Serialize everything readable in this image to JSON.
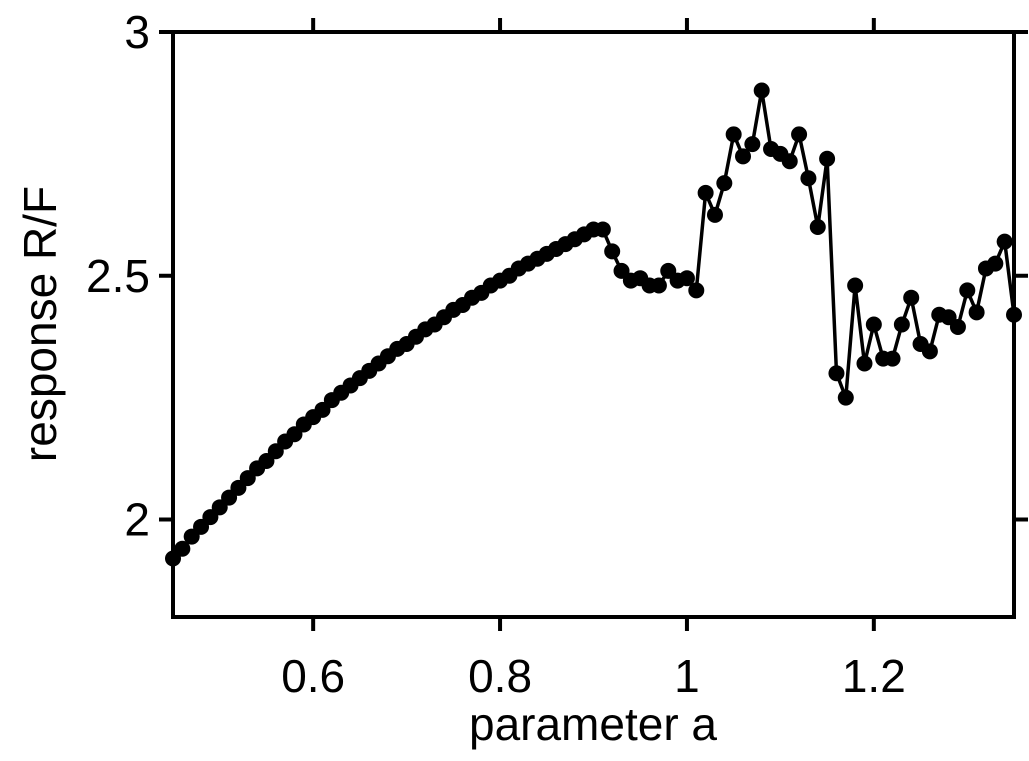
{
  "chart_data": {
    "type": "line",
    "xlabel": "parameter a",
    "ylabel": "response R/F",
    "xlim": [
      0.45,
      1.35
    ],
    "ylim": [
      1.8,
      3.0
    ],
    "x_ticks": [
      0.6,
      0.8,
      1.0,
      1.2
    ],
    "x_tick_labels": [
      "0.6",
      "0.8",
      "1",
      "1.2"
    ],
    "y_ticks": [
      2.0,
      2.5,
      3.0
    ],
    "y_tick_labels": [
      "2",
      "2.5",
      "3"
    ],
    "grid": false,
    "marker": "filled-circle",
    "color": "#000000",
    "series": [
      {
        "x": [
          0.45,
          0.46,
          0.47,
          0.48,
          0.49,
          0.5,
          0.51,
          0.52,
          0.53,
          0.54,
          0.55,
          0.56,
          0.57,
          0.58,
          0.59,
          0.6,
          0.61,
          0.62,
          0.63,
          0.64,
          0.65,
          0.66,
          0.67,
          0.68,
          0.69,
          0.7,
          0.71,
          0.72,
          0.73,
          0.74,
          0.75,
          0.76,
          0.77,
          0.78,
          0.79,
          0.8,
          0.81,
          0.82,
          0.83,
          0.84,
          0.85,
          0.86,
          0.87,
          0.88,
          0.89,
          0.9,
          0.91,
          0.92,
          0.93,
          0.94,
          0.95,
          0.96,
          0.97,
          0.98,
          0.99,
          1.0,
          1.01,
          1.02,
          1.03,
          1.04,
          1.05,
          1.06,
          1.07,
          1.08,
          1.09,
          1.1,
          1.11,
          1.12,
          1.13,
          1.14,
          1.15,
          1.16,
          1.17,
          1.18,
          1.19,
          1.2,
          1.21,
          1.22,
          1.23,
          1.24,
          1.25,
          1.26,
          1.27,
          1.28,
          1.29,
          1.3,
          1.31,
          1.32,
          1.33,
          1.34,
          1.35
        ],
        "y": [
          1.92,
          1.94,
          1.965,
          1.985,
          2.005,
          2.025,
          2.045,
          2.065,
          2.085,
          2.105,
          2.12,
          2.14,
          2.16,
          2.175,
          2.195,
          2.21,
          2.225,
          2.245,
          2.26,
          2.275,
          2.29,
          2.305,
          2.32,
          2.335,
          2.35,
          2.36,
          2.375,
          2.39,
          2.4,
          2.415,
          2.43,
          2.44,
          2.455,
          2.465,
          2.48,
          2.49,
          2.5,
          2.515,
          2.525,
          2.535,
          2.545,
          2.555,
          2.565,
          2.575,
          2.585,
          2.595,
          2.595,
          2.55,
          2.51,
          2.49,
          2.495,
          2.48,
          2.48,
          2.51,
          2.49,
          2.495,
          2.47,
          2.67,
          2.625,
          2.69,
          2.79,
          2.745,
          2.77,
          2.88,
          2.76,
          2.75,
          2.735,
          2.79,
          2.7,
          2.6,
          2.74,
          2.3,
          2.25,
          2.48,
          2.32,
          2.4,
          2.33,
          2.33,
          2.4,
          2.455,
          2.36,
          2.345,
          2.42,
          2.415,
          2.395,
          2.47,
          2.425,
          2.515,
          2.525,
          2.57,
          2.42
        ]
      }
    ]
  }
}
